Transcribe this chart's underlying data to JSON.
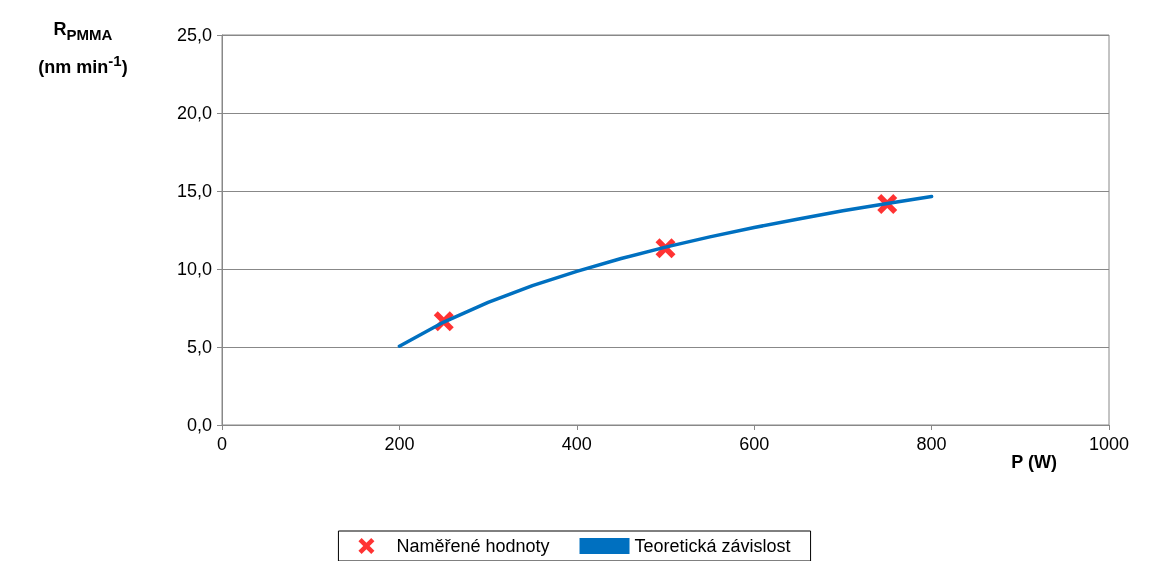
{
  "chart_data": {
    "type": "scatter",
    "xlabel": "P (W)",
    "ylabel": "R$_{PMMA}$ (nm min$^{-1}$)",
    "xlim": [
      0,
      1000
    ],
    "xticks": [
      0,
      200,
      400,
      600,
      800,
      1000
    ],
    "ylim": [
      0,
      25
    ],
    "yticks": [
      {
        "value": 0,
        "label": "0,0"
      },
      {
        "value": 5,
        "label": "5,0"
      },
      {
        "value": 10,
        "label": "10,0"
      },
      {
        "value": 15,
        "label": "15,0"
      },
      {
        "value": 20,
        "label": "20,0"
      },
      {
        "value": 25,
        "label": "25,0"
      }
    ],
    "grid": "y",
    "legend": "bottom",
    "series": [
      {
        "name": "Naměřené hodnoty",
        "marker": "cross",
        "color": "#ff0000",
        "x": [
          250,
          500,
          750
        ],
        "values": [
          6.65,
          11.33,
          14.16
        ]
      },
      {
        "name": "Teoretická závislost",
        "type": "line",
        "marker": "none",
        "color": "#0070c0",
        "x": [
          200,
          250,
          300,
          350,
          400,
          450,
          500,
          550,
          600,
          650,
          700,
          750,
          800
        ],
        "values": [
          5.05,
          6.6,
          7.86,
          8.93,
          9.85,
          10.67,
          11.4,
          12.06,
          12.66,
          13.21,
          13.73,
          14.2,
          14.65
        ]
      }
    ]
  }
}
